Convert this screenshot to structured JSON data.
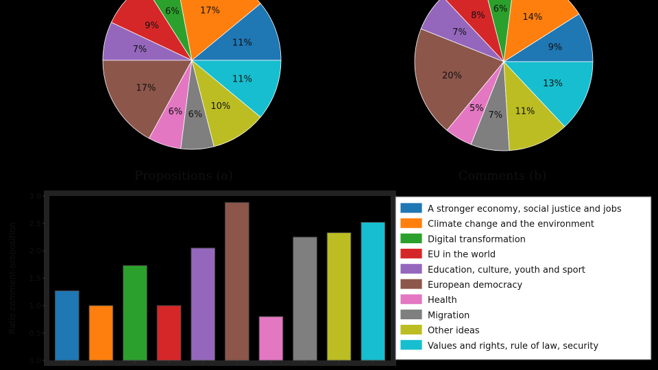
{
  "chart_data": [
    {
      "type": "pie",
      "title": "Propositions (a)",
      "categories": [
        "A stronger economy, social justice and jobs",
        "Climate change and the environment",
        "Digital transformation",
        "EU in the world",
        "Education, culture, youth and sport",
        "European democracy",
        "Health",
        "Migration",
        "Other ideas",
        "Values and rights, rule of law, security"
      ],
      "values": [
        11,
        17,
        6,
        9,
        7,
        17,
        6,
        6,
        10,
        11
      ],
      "labels": [
        "11%",
        "17%",
        "6%",
        "9%",
        "7%",
        "17%",
        "6%",
        "6%",
        "10%",
        "11%"
      ]
    },
    {
      "type": "pie",
      "title": "Comments (b)",
      "categories": [
        "A stronger economy, social justice and jobs",
        "Climate change and the environment",
        "Digital transformation",
        "EU in the world",
        "Education, culture, youth and sport",
        "European democracy",
        "Health",
        "Migration",
        "Other ideas",
        "Values and rights, rule of law, security"
      ],
      "values": [
        9,
        14,
        6,
        8,
        7,
        20,
        5,
        7,
        11,
        13
      ],
      "labels": [
        "9%",
        "14%",
        "6%",
        "8%",
        "7%",
        "20%",
        "5%",
        "7%",
        "11%",
        "13%"
      ]
    },
    {
      "type": "bar",
      "title": "",
      "ylabel": "Ratio comment-proposition",
      "ylim": [
        0.0,
        3.0
      ],
      "yticks": [
        "0.0",
        "0.5",
        "1.0",
        "1.5",
        "2.0",
        "2.5",
        "3.0"
      ],
      "categories": [
        "A stronger economy, social justice and jobs",
        "Climate change and the environment",
        "Digital transformation",
        "EU in the world",
        "Education, culture, youth and sport",
        "European democracy",
        "Health",
        "Migration",
        "Other ideas",
        "Values and rights, rule of law, security"
      ],
      "values": [
        1.27,
        1.0,
        1.73,
        1.0,
        2.05,
        2.88,
        0.8,
        2.25,
        2.33,
        2.52
      ]
    }
  ],
  "legend": [
    "A stronger economy, social justice and jobs",
    "Climate change and the environment",
    "Digital transformation",
    "EU in the world",
    "Education, culture, youth and sport",
    "European democracy",
    "Health",
    "Migration",
    "Other ideas",
    "Values and rights, rule of law, security"
  ],
  "colors": [
    "#1f77b4",
    "#ff7f0e",
    "#2ca02c",
    "#d62728",
    "#9467bd",
    "#8c564b",
    "#e377c2",
    "#7f7f7f",
    "#bcbd22",
    "#17becf"
  ],
  "captions": {
    "a": "Propositions (a)",
    "b": "Comments (b)"
  }
}
